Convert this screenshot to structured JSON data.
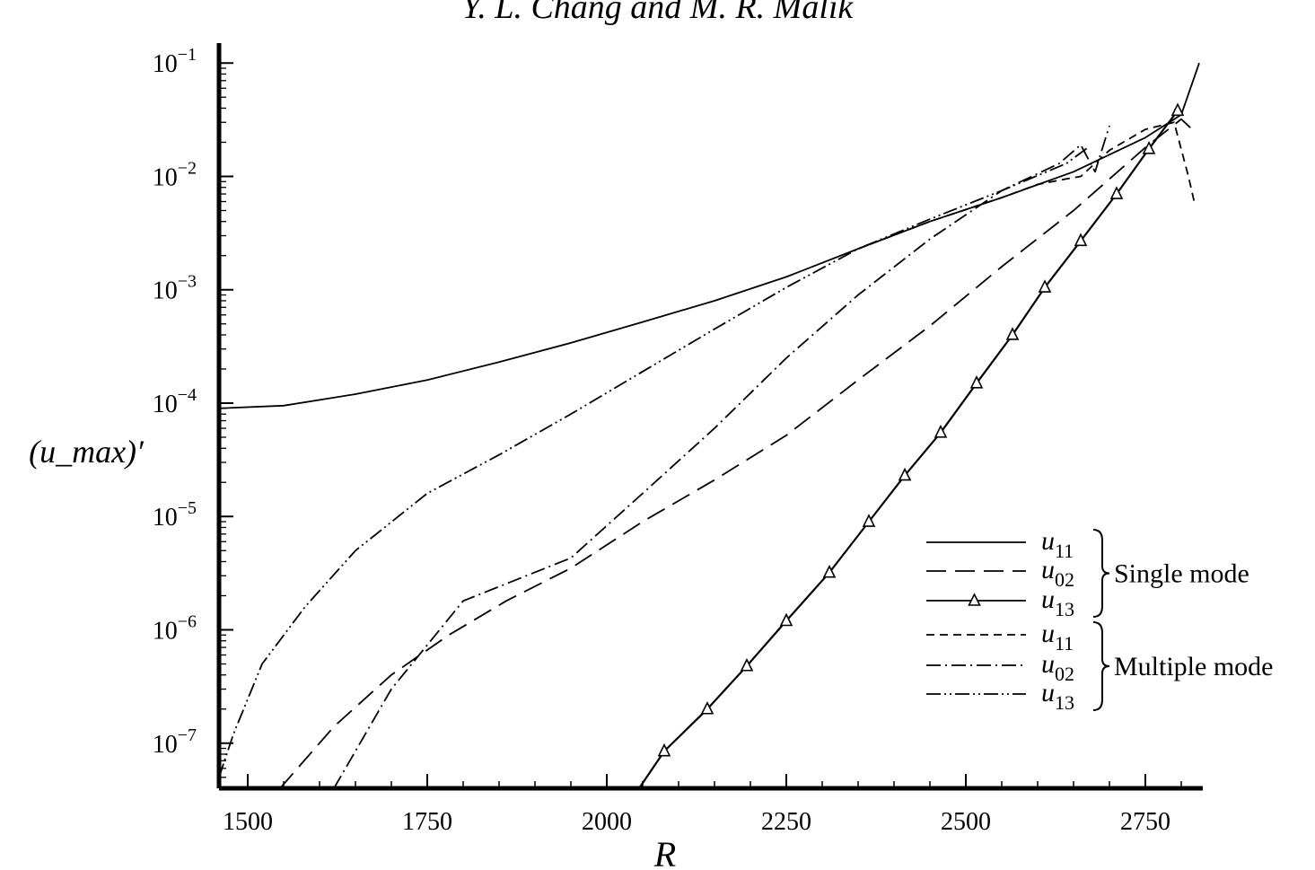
{
  "header_text": "Y. L. Chang and M. R. Malik",
  "chart_data": {
    "type": "line",
    "title": "",
    "xlabel": "R",
    "ylabel": "(u_max)′",
    "y_scale": "log",
    "xlim": [
      1460,
      2830
    ],
    "ylim": [
      4e-08,
      0.15
    ],
    "grid": false,
    "legend_position": "bottom-right",
    "x_tick_labels": [
      "1500",
      "1750",
      "2000",
      "2250",
      "2500",
      "2750"
    ],
    "x_ticks": [
      1500,
      1750,
      2000,
      2250,
      2500,
      2750
    ],
    "y_ticks": [
      {
        "value": 0.1,
        "base": "10",
        "exp": "−1"
      },
      {
        "value": 0.01,
        "base": "10",
        "exp": "−2"
      },
      {
        "value": 0.001,
        "base": "10",
        "exp": "−3"
      },
      {
        "value": 0.0001,
        "base": "10",
        "exp": "−4"
      },
      {
        "value": 1e-05,
        "base": "10",
        "exp": "−5"
      },
      {
        "value": 1e-06,
        "base": "10",
        "exp": "−6"
      },
      {
        "value": 1e-07,
        "base": "10",
        "exp": "−7"
      }
    ],
    "legend_groups": [
      {
        "label": "Single mode",
        "entries": [
          "u11",
          "u02",
          "u13"
        ]
      },
      {
        "label": "Multiple mode",
        "entries": [
          "u11",
          "u02",
          "u13"
        ]
      }
    ],
    "series": [
      {
        "name": "u11",
        "group": "Single mode",
        "style": "solid",
        "x": [
          1460,
          1550,
          1650,
          1750,
          1850,
          1950,
          2050,
          2150,
          2250,
          2350,
          2450,
          2550,
          2650,
          2750,
          2800,
          2825
        ],
        "y": [
          9e-05,
          9.5e-05,
          0.00012,
          0.00016,
          0.00023,
          0.00034,
          0.00052,
          0.0008,
          0.0013,
          0.0023,
          0.004,
          0.0065,
          0.011,
          0.022,
          0.035,
          0.1
        ]
      },
      {
        "name": "u02",
        "group": "Single mode",
        "style": "long-dash",
        "x": [
          1545,
          1620,
          1700,
          1780,
          1860,
          1950,
          2050,
          2150,
          2250,
          2350,
          2450,
          2550,
          2650,
          2750,
          2800,
          2818
        ],
        "y": [
          4e-08,
          1.4e-07,
          4e-07,
          9e-07,
          1.8e-06,
          3.5e-06,
          9e-06,
          2.1e-05,
          5.2e-05,
          0.00016,
          0.00048,
          0.0016,
          0.005,
          0.018,
          0.032,
          0.025
        ]
      },
      {
        "name": "u13",
        "group": "Single mode",
        "style": "solid-triangles",
        "x": [
          2045,
          2080,
          2140,
          2195,
          2250,
          2310,
          2365,
          2415,
          2465,
          2515,
          2565,
          2610,
          2660,
          2710,
          2755,
          2795
        ],
        "y": [
          4e-08,
          8.5e-08,
          2e-07,
          4.8e-07,
          1.2e-06,
          3.2e-06,
          9e-06,
          2.3e-05,
          5.5e-05,
          0.00015,
          0.0004,
          0.00105,
          0.0027,
          0.007,
          0.0175,
          0.038
        ]
      },
      {
        "name": "u11",
        "group": "Multiple mode",
        "style": "short-dash",
        "x": [
          2350,
          2450,
          2550,
          2600,
          2640,
          2660,
          2700,
          2750,
          2790,
          2810,
          2818
        ],
        "y": [
          0.0023,
          0.004,
          0.0065,
          0.0085,
          0.0095,
          0.01,
          0.017,
          0.026,
          0.03,
          0.01,
          0.006
        ]
      },
      {
        "name": "u02",
        "group": "Multiple mode",
        "style": "dash-dot",
        "x": [
          1620,
          1700,
          1800,
          1950,
          2050,
          2150,
          2250,
          2350,
          2450,
          2550,
          2630,
          2660,
          2680,
          2700
        ],
        "y": [
          4e-08,
          3e-07,
          1.8e-06,
          4.3e-06,
          1.6e-05,
          6e-05,
          0.00025,
          0.0009,
          0.0028,
          0.0075,
          0.013,
          0.019,
          0.011,
          0.028
        ]
      },
      {
        "name": "u13",
        "group": "Multiple mode",
        "style": "dash-dot-dot",
        "x": [
          1460,
          1480,
          1520,
          1580,
          1650,
          1750,
          1850,
          1950,
          2050,
          2150,
          2250,
          2350,
          2450,
          2550,
          2640,
          2670
        ],
        "y": [
          5e-08,
          1.2e-07,
          5e-07,
          1.6e-06,
          5e-06,
          1.6e-05,
          3.5e-05,
          8e-05,
          0.00019,
          0.00045,
          0.00105,
          0.0023,
          0.0042,
          0.0075,
          0.013,
          0.018
        ]
      }
    ]
  }
}
